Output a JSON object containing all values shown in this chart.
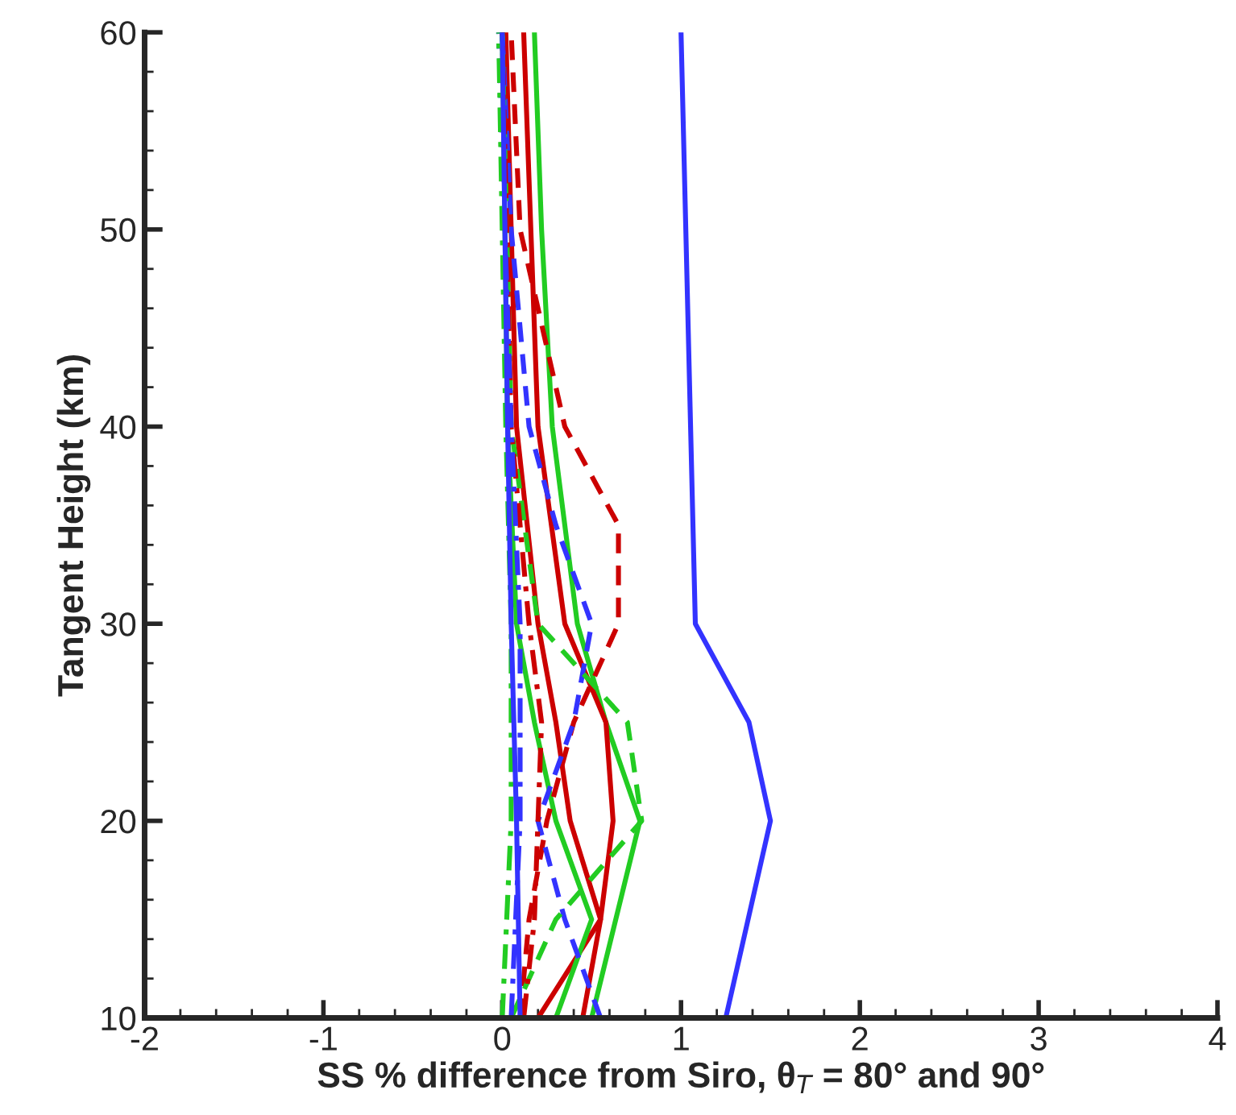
{
  "chart_data": {
    "type": "line",
    "xlabel": "SS % difference from Siro, θ$_{T}$ = 80° and 90°",
    "ylabel": "Tangent Height (km)",
    "xlim": [
      -2,
      4
    ],
    "xticks": [
      -2,
      -1,
      0,
      1,
      2,
      3,
      4
    ],
    "ylim": [
      10,
      60
    ],
    "yticks": [
      10,
      20,
      30,
      40,
      50,
      60
    ],
    "grid": false,
    "legend": false,
    "marker": "none",
    "series": [
      {
        "color": "#3333ff",
        "line_style": "solid",
        "x": [
          1.25,
          1.5,
          1.38,
          1.08,
          1.0
        ],
        "values": [
          10,
          20,
          25,
          30,
          60
        ]
      },
      {
        "color": "#22cc22",
        "line_style": "solid",
        "x": [
          0.5,
          0.77,
          0.58,
          0.42,
          0.28,
          0.22,
          0.18
        ],
        "values": [
          10,
          20,
          25,
          30,
          40,
          50,
          60
        ]
      },
      {
        "color": "#cc0000",
        "line_style": "solid",
        "x": [
          0.45,
          0.55,
          0.62,
          0.58,
          0.35,
          0.2,
          0.16,
          0.12
        ],
        "values": [
          10,
          15,
          20,
          25,
          30,
          40,
          50,
          60
        ]
      },
      {
        "color": "#cc0000",
        "line_style": "solid",
        "x": [
          0.2,
          0.55,
          0.38,
          0.3,
          0.2,
          0.08,
          0.02
        ],
        "values": [
          10,
          15,
          20,
          25,
          30,
          40,
          60
        ]
      },
      {
        "color": "#22cc22",
        "line_style": "solid",
        "x": [
          0.3,
          0.5,
          0.3,
          0.18,
          0.08,
          0.03,
          0.0
        ],
        "values": [
          10,
          15,
          20,
          25,
          30,
          40,
          60
        ]
      },
      {
        "color": "#cc0000",
        "line_style": "dashed",
        "x": [
          0.1,
          0.15,
          0.25,
          0.4,
          0.65,
          0.65,
          0.35,
          0.1,
          0.05
        ],
        "values": [
          10,
          15,
          20,
          25,
          30,
          35,
          40,
          50,
          60
        ]
      },
      {
        "color": "#3333ff",
        "line_style": "dashed",
        "x": [
          0.55,
          0.35,
          0.2,
          0.4,
          0.5,
          0.3,
          0.15,
          0.05,
          0.0
        ],
        "values": [
          10,
          15,
          20,
          25,
          30,
          35,
          40,
          50,
          60
        ]
      },
      {
        "color": "#22cc22",
        "line_style": "dashed",
        "x": [
          0.05,
          0.3,
          0.78,
          0.7,
          0.2,
          0.05,
          0.0
        ],
        "values": [
          10,
          15,
          20,
          25,
          30,
          40,
          60
        ]
      },
      {
        "color": "#cc0000",
        "line_style": "dashdot",
        "x": [
          0.12,
          0.18,
          0.2,
          0.22,
          0.15,
          0.05,
          0.0
        ],
        "values": [
          10,
          15,
          20,
          25,
          30,
          40,
          60
        ]
      },
      {
        "color": "#3333ff",
        "line_style": "dashdot",
        "x": [
          0.05,
          0.1,
          0.1,
          0.05,
          -0.02
        ],
        "values": [
          10,
          20,
          30,
          40,
          60
        ]
      },
      {
        "color": "#22cc22",
        "line_style": "dashdot",
        "x": [
          0.0,
          0.05,
          0.05,
          0.02,
          -0.02
        ],
        "values": [
          10,
          20,
          30,
          40,
          60
        ]
      },
      {
        "color": "#3333ff",
        "line_style": "solid",
        "x": [
          0.1,
          0.08,
          0.05,
          0.03,
          0.0
        ],
        "values": [
          10,
          20,
          30,
          40,
          60
        ]
      }
    ]
  }
}
